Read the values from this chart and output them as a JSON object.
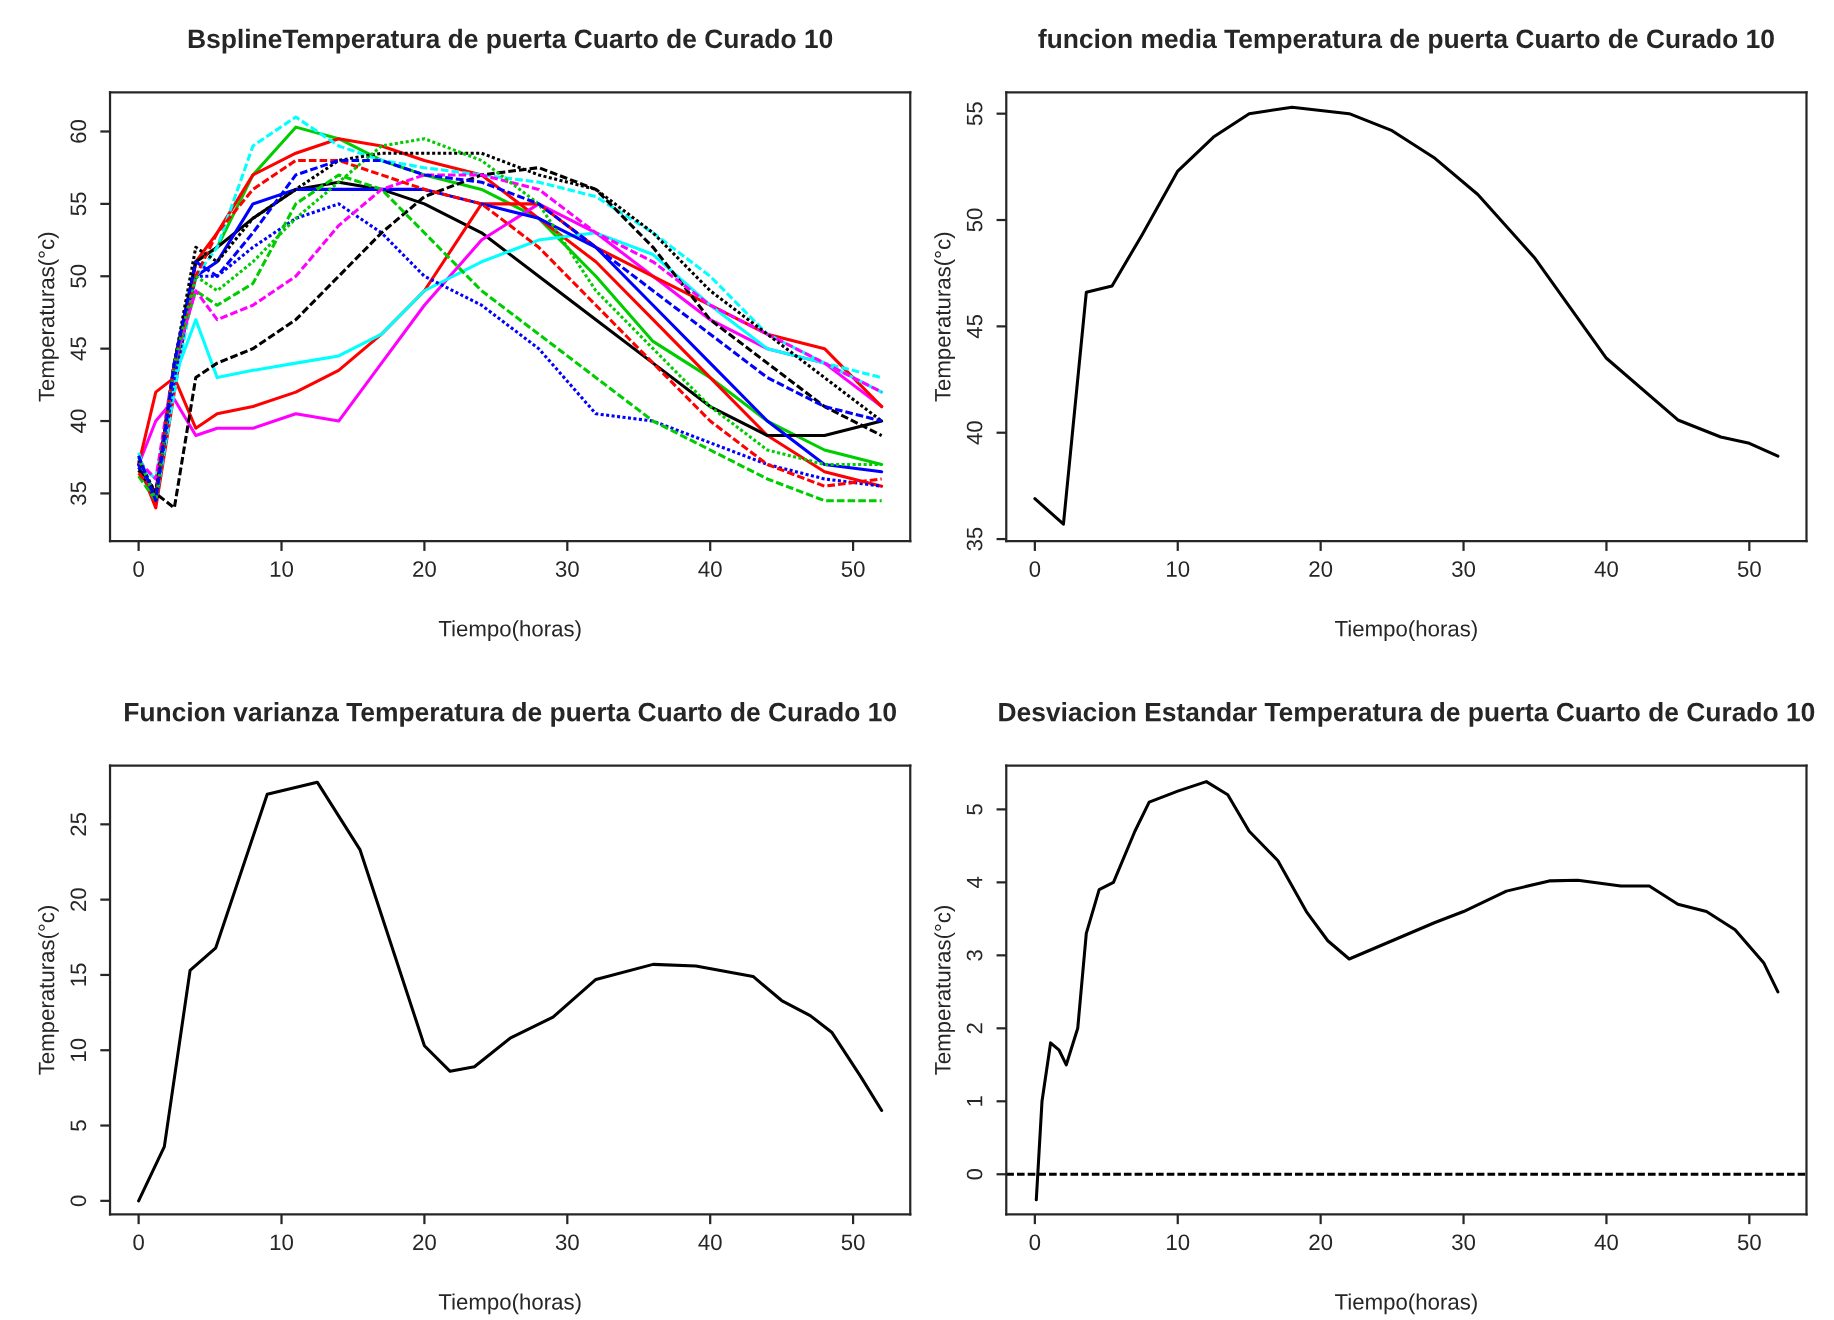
{
  "chart_data": [
    {
      "type": "line",
      "title": "BsplineTemperatura de puerta Cuarto de Curado 10",
      "xlabel": "Tiempo(horas)",
      "ylabel": "Temperaturas(°c)",
      "xlim": [
        -2,
        54
      ],
      "ylim": [
        31.7,
        62.7
      ],
      "xticks": [
        0,
        10,
        20,
        30,
        40,
        50
      ],
      "yticks": [
        35,
        40,
        45,
        50,
        55,
        60
      ],
      "grid": false,
      "legend": false,
      "marker": "none",
      "line_style": "solid",
      "x": [
        0,
        1.2,
        2.5,
        4,
        5.5,
        8,
        11,
        14,
        17,
        20,
        24,
        28,
        32,
        36,
        40,
        44,
        48,
        52
      ],
      "series": [
        {
          "color": "#00ffff",
          "line_style": "dashed",
          "values": [
            37.8,
            34.5,
            42,
            50,
            52,
            59,
            61,
            59,
            58,
            57.5,
            57,
            56.5,
            55.5,
            53,
            50,
            46,
            44,
            43
          ]
        },
        {
          "color": "#00cd00",
          "line_style": "solid",
          "values": [
            37,
            34.5,
            43,
            51,
            52,
            57,
            60.3,
            59.5,
            58,
            57,
            56,
            54,
            50,
            45.5,
            43,
            40,
            38,
            37
          ]
        },
        {
          "color": "#ff0000",
          "line_style": "solid",
          "values": [
            37,
            34,
            42,
            51,
            53,
            57,
            58.5,
            59.5,
            59,
            58,
            57,
            54,
            51,
            47,
            43,
            39,
            36.5,
            35.5
          ]
        },
        {
          "color": "#000000",
          "line_style": "solid",
          "values": [
            37,
            35,
            44,
            51,
            52,
            54,
            56,
            56.5,
            56,
            55,
            53,
            50,
            47,
            44,
            41,
            39,
            39,
            40
          ]
        },
        {
          "color": "#0000ff",
          "line_style": "dotted",
          "values": [
            36.8,
            34.5,
            43,
            50,
            50,
            52,
            54,
            55,
            53,
            50,
            48,
            45,
            40.5,
            40,
            38.5,
            37,
            36,
            35.5
          ]
        },
        {
          "color": "#ff00ff",
          "line_style": "solid",
          "values": [
            37,
            40,
            41.5,
            39,
            39.5,
            39.5,
            40.5,
            40,
            44,
            48,
            52.5,
            55,
            53,
            50,
            47,
            45,
            44,
            41
          ]
        },
        {
          "color": "#ff0000",
          "line_style": "solid",
          "values": [
            37,
            42,
            43,
            39.5,
            40.5,
            41,
            42,
            43.5,
            46,
            49,
            55,
            55,
            52,
            50,
            48,
            46,
            45,
            41
          ]
        },
        {
          "color": "#00ffff",
          "line_style": "solid",
          "values": [
            37,
            36,
            43,
            47,
            43,
            43.5,
            44,
            44.5,
            46,
            49,
            51,
            52.5,
            53,
            51.5,
            48,
            45,
            44,
            42
          ]
        },
        {
          "color": "#000000",
          "line_style": "dashed",
          "values": [
            36.6,
            35,
            34,
            43,
            44,
            45,
            47,
            50,
            53,
            55.5,
            57,
            57.5,
            56,
            52,
            47,
            44,
            41,
            39
          ]
        },
        {
          "color": "#00cd00",
          "line_style": "dashed",
          "values": [
            36.2,
            34.5,
            44,
            49,
            48,
            49.5,
            55,
            57,
            56,
            53,
            49,
            46,
            43,
            40,
            38,
            36,
            34.5,
            34.5
          ]
        },
        {
          "color": "#ff00ff",
          "line_style": "dashed",
          "values": [
            37.2,
            36,
            44,
            49,
            47,
            48,
            50,
            53.5,
            56,
            57,
            57,
            56,
            53,
            51,
            48,
            46,
            44,
            42
          ]
        },
        {
          "color": "#0000ff",
          "line_style": "solid",
          "values": [
            37,
            35,
            44,
            50,
            51,
            55,
            56,
            56,
            56,
            56,
            55,
            54,
            52,
            48,
            44,
            40,
            37,
            36.5
          ]
        },
        {
          "color": "#ff0000",
          "line_style": "dashed",
          "values": [
            36.4,
            35,
            44,
            50,
            53,
            56,
            58,
            58,
            57,
            56,
            55,
            52,
            48,
            44,
            40,
            37,
            35.5,
            36
          ]
        },
        {
          "color": "#000000",
          "line_style": "dotted",
          "values": [
            37.3,
            35,
            44,
            52,
            51,
            54,
            56,
            58,
            58.5,
            58.5,
            58.5,
            57,
            56,
            53,
            49,
            46,
            43,
            40
          ]
        },
        {
          "color": "#00cd00",
          "line_style": "dotted",
          "values": [
            37.5,
            34.5,
            44,
            50,
            49,
            51,
            54,
            56.5,
            59,
            59.5,
            58,
            55,
            49,
            45,
            41,
            38,
            37,
            37
          ]
        },
        {
          "color": "#0000ff",
          "line_style": "dashed",
          "values": [
            37.6,
            34.5,
            44,
            51,
            50,
            53,
            57,
            58,
            58,
            57,
            56.5,
            55,
            52,
            49,
            46,
            43,
            41,
            40
          ]
        }
      ]
    },
    {
      "type": "line",
      "title": "funcion media Temperatura de puerta Cuarto de Curado 10",
      "xlabel": "Tiempo(horas)",
      "ylabel": "Temperaturas(°c)",
      "xlim": [
        -2,
        54
      ],
      "ylim": [
        34.9,
        56
      ],
      "xticks": [
        0,
        10,
        20,
        30,
        40,
        50
      ],
      "yticks": [
        35,
        40,
        45,
        50,
        55
      ],
      "grid": false,
      "legend": false,
      "marker": "none",
      "line_style": "solid",
      "x": [
        0,
        2,
        3.6,
        5.4,
        7.5,
        10,
        12.5,
        15,
        18,
        22,
        25,
        28,
        31,
        35,
        40,
        45,
        48,
        50,
        52
      ],
      "series": [
        {
          "color": "#000000",
          "values": [
            36.9,
            35.7,
            46.6,
            46.9,
            49.3,
            52.3,
            53.9,
            55.0,
            55.3,
            55.0,
            54.2,
            52.9,
            51.2,
            48.2,
            43.5,
            40.6,
            39.8,
            39.5,
            38.9
          ]
        }
      ]
    },
    {
      "type": "line",
      "title": "Funcion varianza Temperatura de puerta Cuarto de Curado 10",
      "xlabel": "Tiempo(horas)",
      "ylabel": "Temperaturas(°c)",
      "xlim": [
        -2,
        54
      ],
      "ylim": [
        -0.9,
        28.9
      ],
      "xticks": [
        0,
        10,
        20,
        30,
        40,
        50
      ],
      "yticks": [
        0,
        5,
        10,
        15,
        20,
        25
      ],
      "grid": false,
      "legend": false,
      "marker": "none",
      "line_style": "solid",
      "x": [
        0,
        1.8,
        3.6,
        5.4,
        9,
        12.5,
        15.5,
        20,
        21.8,
        23.5,
        26,
        29,
        32,
        36,
        39,
        43,
        45,
        47,
        48.5,
        50.5,
        52
      ],
      "series": [
        {
          "color": "#000000",
          "values": [
            0,
            3.6,
            15.3,
            16.8,
            27,
            27.8,
            23.3,
            10.3,
            8.6,
            8.9,
            10.8,
            12.2,
            14.7,
            15.7,
            15.6,
            14.9,
            13.3,
            12.3,
            11.2,
            8.3,
            6
          ]
        }
      ]
    },
    {
      "type": "line",
      "title": "Desviacion Estandar Temperatura de puerta Cuarto de Curado 10",
      "xlabel": "Tiempo(horas)",
      "ylabel": "Temperaturas(°c)",
      "xlim": [
        -2,
        54
      ],
      "ylim": [
        -0.55,
        5.6
      ],
      "xticks": [
        0,
        10,
        20,
        30,
        40,
        50
      ],
      "yticks": [
        0,
        1,
        2,
        3,
        4,
        5
      ],
      "grid": false,
      "legend": false,
      "marker": "none",
      "line_style": "solid",
      "x": [
        0.1,
        0.5,
        1.1,
        1.7,
        2.2,
        3,
        3.6,
        4.5,
        5.5,
        7,
        8,
        10,
        12,
        13.5,
        15,
        17,
        19,
        20.5,
        22,
        25,
        28,
        30,
        33,
        36,
        38,
        41,
        43,
        45,
        47,
        49,
        51,
        52
      ],
      "series": [
        {
          "color": "#000000",
          "values": [
            -0.35,
            1.0,
            1.8,
            1.7,
            1.5,
            2.0,
            3.3,
            3.9,
            4.0,
            4.7,
            5.1,
            5.25,
            5.38,
            5.2,
            4.7,
            4.3,
            3.6,
            3.2,
            2.95,
            3.2,
            3.45,
            3.6,
            3.88,
            4.02,
            4.03,
            3.95,
            3.95,
            3.7,
            3.6,
            3.35,
            2.9,
            2.5
          ]
        }
      ],
      "ref_lines": [
        {
          "axis": "y",
          "value": 0,
          "color": "#000000",
          "line_style": "dashed"
        }
      ]
    }
  ]
}
